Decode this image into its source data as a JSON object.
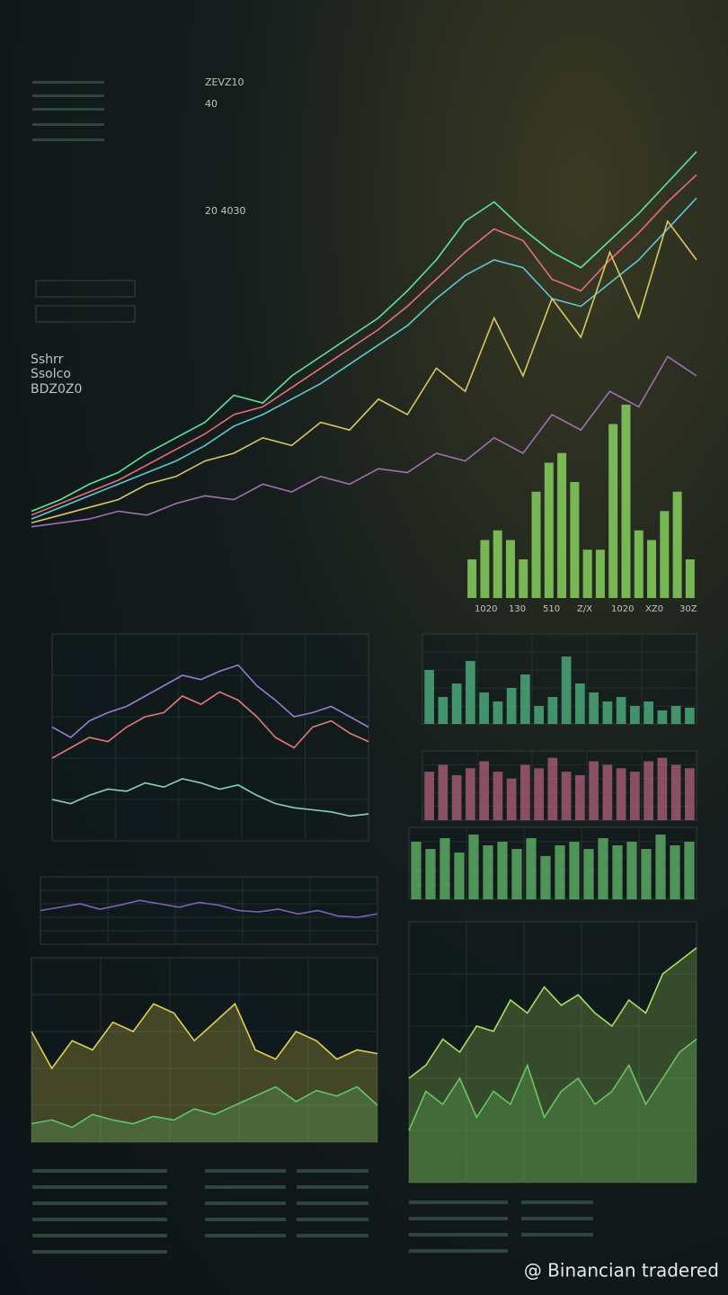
{
  "header": {
    "labels": [
      "ZEVZ10",
      "40",
      "20 4030"
    ]
  },
  "sidebar": {
    "lines": [
      "Sshrr",
      "Ssolco",
      "BDZ0Z0"
    ]
  },
  "main_chart": {
    "type": "line",
    "ylim": [
      0,
      100
    ],
    "series": [
      {
        "color": "#5fe39a",
        "values": [
          5,
          8,
          12,
          15,
          20,
          24,
          28,
          35,
          33,
          40,
          45,
          50,
          55,
          62,
          70,
          80,
          85,
          78,
          72,
          68,
          75,
          82,
          90,
          98
        ]
      },
      {
        "color": "#e0707a",
        "values": [
          4,
          7,
          10,
          13,
          17,
          21,
          25,
          30,
          32,
          37,
          42,
          47,
          52,
          58,
          65,
          72,
          78,
          75,
          65,
          62,
          70,
          77,
          85,
          92
        ]
      },
      {
        "color": "#5ec8d0",
        "values": [
          3,
          6,
          9,
          12,
          15,
          18,
          22,
          27,
          30,
          34,
          38,
          43,
          48,
          53,
          60,
          66,
          70,
          68,
          60,
          58,
          64,
          70,
          78,
          86
        ]
      },
      {
        "color": "#d8c860",
        "values": [
          2,
          4,
          6,
          8,
          12,
          14,
          18,
          20,
          24,
          22,
          28,
          26,
          34,
          30,
          42,
          36,
          55,
          40,
          60,
          50,
          72,
          55,
          80,
          70
        ]
      },
      {
        "color": "#a070b0",
        "values": [
          1,
          2,
          3,
          5,
          4,
          7,
          9,
          8,
          12,
          10,
          14,
          12,
          16,
          15,
          20,
          18,
          24,
          20,
          30,
          26,
          36,
          32,
          45,
          40
        ]
      }
    ]
  },
  "bar_chart": {
    "type": "bar",
    "ylim": [
      0,
      100
    ],
    "series": [
      {
        "color": "#86d05e",
        "values": [
          20,
          30,
          35,
          30,
          20,
          55,
          70,
          75,
          60,
          25,
          25,
          90,
          100,
          35,
          30,
          45,
          55,
          20
        ]
      }
    ],
    "labels": [
      "1020",
      "130",
      "510",
      "Z/X",
      "1020",
      "XZ0",
      "30Z"
    ]
  },
  "panels": [
    {
      "type": "line",
      "ylim": [
        0,
        100
      ],
      "series": [
        {
          "color": "#e07a7a",
          "values": [
            40,
            45,
            50,
            48,
            55,
            60,
            62,
            70,
            66,
            72,
            68,
            60,
            50,
            45,
            55,
            58,
            52,
            48
          ]
        },
        {
          "color": "#9a7ad0",
          "values": [
            55,
            50,
            58,
            62,
            65,
            70,
            75,
            80,
            78,
            82,
            85,
            75,
            68,
            60,
            62,
            65,
            60,
            55
          ]
        },
        {
          "color": "#8fd0b0",
          "values": [
            20,
            18,
            22,
            25,
            24,
            28,
            26,
            30,
            28,
            25,
            27,
            22,
            18,
            16,
            15,
            14,
            12,
            13
          ]
        }
      ]
    },
    {
      "type": "bar",
      "ylim": [
        0,
        100
      ],
      "series": [
        {
          "color": "#4aa878",
          "values": [
            60,
            30,
            45,
            70,
            35,
            25,
            40,
            55,
            20,
            30,
            75,
            45,
            35,
            25,
            30,
            20,
            25,
            15,
            20,
            18
          ]
        }
      ]
    },
    {
      "type": "bar",
      "ylim": [
        0,
        100
      ],
      "series": [
        {
          "color": "#a05870",
          "values": [
            70,
            80,
            65,
            75,
            85,
            70,
            60,
            80,
            75,
            90,
            70,
            65,
            85,
            80,
            75,
            70,
            85,
            90,
            80,
            75
          ]
        }
      ]
    },
    {
      "type": "bar",
      "ylim": [
        0,
        100
      ],
      "series": [
        {
          "color": "#5aa860",
          "values": [
            80,
            70,
            85,
            65,
            90,
            75,
            80,
            70,
            85,
            60,
            75,
            80,
            70,
            85,
            75,
            80,
            70,
            90,
            75,
            80
          ]
        }
      ]
    },
    {
      "type": "line",
      "ylim": [
        0,
        100
      ],
      "series": [
        {
          "color": "#8060c0",
          "values": [
            50,
            55,
            60,
            52,
            58,
            65,
            60,
            55,
            62,
            58,
            50,
            48,
            52,
            45,
            50,
            42,
            40,
            45
          ]
        }
      ]
    },
    {
      "type": "area",
      "ylim": [
        0,
        100
      ],
      "series": [
        {
          "color": "#e0d050",
          "values": [
            60,
            40,
            55,
            50,
            65,
            60,
            75,
            70,
            55,
            65,
            75,
            50,
            45,
            60,
            55,
            45,
            50,
            48
          ]
        },
        {
          "color": "#5ec86a",
          "values": [
            10,
            12,
            8,
            15,
            12,
            10,
            14,
            12,
            18,
            15,
            20,
            25,
            30,
            22,
            28,
            25,
            30,
            20
          ]
        }
      ]
    },
    {
      "type": "area",
      "ylim": [
        0,
        100
      ],
      "series": [
        {
          "color": "#a8e060",
          "values": [
            40,
            45,
            55,
            50,
            60,
            58,
            70,
            65,
            75,
            68,
            72,
            65,
            60,
            70,
            65,
            80,
            85,
            90
          ]
        },
        {
          "color": "#6ac860",
          "values": [
            20,
            35,
            30,
            40,
            25,
            35,
            30,
            45,
            25,
            35,
            40,
            30,
            35,
            45,
            30,
            40,
            50,
            55
          ]
        }
      ]
    }
  ],
  "watermark": "@ Binancian tradered"
}
